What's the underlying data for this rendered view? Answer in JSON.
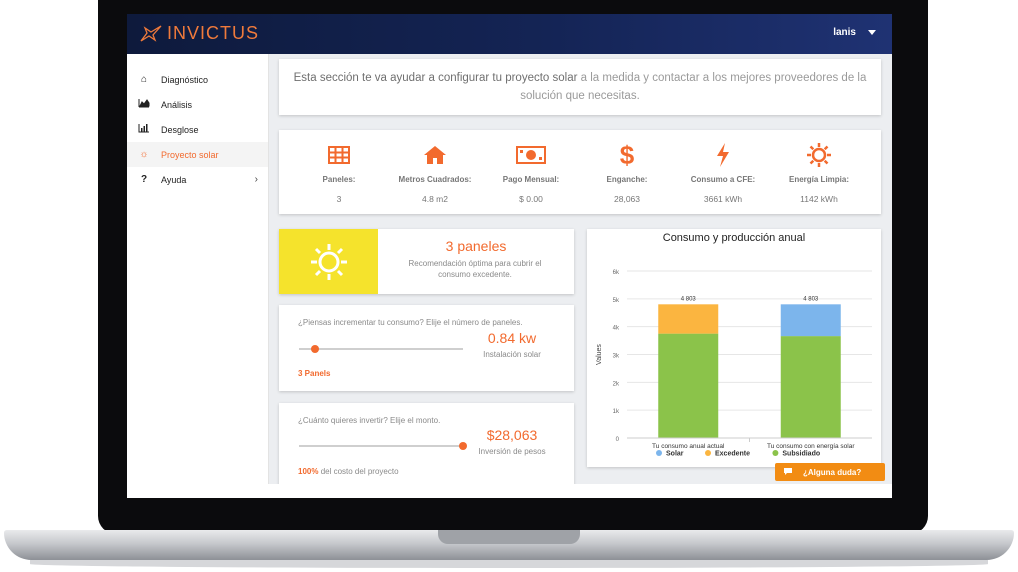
{
  "app": {
    "logo_text": "INVICTUS",
    "user_name": "lanis"
  },
  "sidebar": {
    "items": [
      {
        "label": "Diagnóstico",
        "icon": "home-icon"
      },
      {
        "label": "Análisis",
        "icon": "area-chart-icon"
      },
      {
        "label": "Desglose",
        "icon": "bar-chart-icon"
      },
      {
        "label": "Proyecto solar",
        "icon": "sun-icon",
        "active": true
      },
      {
        "label": "Ayuda",
        "icon": "question-icon",
        "expandable": true
      }
    ]
  },
  "intro": {
    "part1": "Esta sección te va ayudar a configurar tu proyecto solar",
    "part2": " a la medida y contactar a los mejores proveedores de la",
    "part3": "solución que necesitas."
  },
  "stats": [
    {
      "label": "Paneles:",
      "value": "3",
      "icon": "grid-icon"
    },
    {
      "label": "Metros Cuadrados:",
      "value": "4.8 m2",
      "icon": "home-icon"
    },
    {
      "label": "Pago Mensual:",
      "value": "$ 0.00",
      "icon": "money-icon"
    },
    {
      "label": "Enganche:",
      "value": "28,063",
      "icon": "dollar-icon"
    },
    {
      "label": "Consumo a CFE:",
      "value": "3661 kWh",
      "icon": "bolt-icon"
    },
    {
      "label": "Energía Limpia:",
      "value": "1142 kWh",
      "icon": "sun-icon"
    }
  ],
  "recommendation": {
    "title": "3 paneles",
    "subtitle": "Recomendación óptima para cubrir el consumo excedente."
  },
  "consumption": {
    "question": "¿Piensas incrementar tu consumo? Elije el número de paneles.",
    "value": "0.84 kw",
    "value_label": "Instalación solar",
    "footer": "3 Panels",
    "slider_fraction": 0.1
  },
  "investment": {
    "question": "¿Cuánto quieres invertir? Elije el monto.",
    "value": "$28,063",
    "value_label": "Inversión de pesos",
    "footer_bold": "100%",
    "footer_rest": " del costo del proyecto",
    "slider_fraction": 1.0
  },
  "chart_data": {
    "type": "bar",
    "title": "Consumo y producción anual",
    "ylabel": "Values",
    "xlabel": "",
    "ylim": [
      0,
      6000
    ],
    "yticks": [
      "0",
      "1k",
      "2k",
      "3k",
      "4k",
      "5k",
      "6k"
    ],
    "categories": [
      "Tu consumo anual actual",
      "Tu consumo con energía solar"
    ],
    "totals_labels": [
      "4 803",
      "4 803"
    ],
    "series": [
      {
        "name": "Subsidiado",
        "color": "#8bc34a",
        "values": [
          3750,
          3661
        ]
      },
      {
        "name": "Excedente",
        "color": "#fbb540",
        "values": [
          1053,
          0
        ]
      },
      {
        "name": "Solar",
        "color": "#7cb5ec",
        "values": [
          0,
          1142
        ]
      }
    ],
    "legend": [
      "Solar",
      "Excedente",
      "Subsidiado"
    ],
    "legend_position": "bottom",
    "stacked": true
  },
  "help_button": {
    "label": "¿Alguna duda?"
  },
  "colors": {
    "accent": "#f26a2e",
    "topbar": "#142455",
    "sun_box": "#f5e32c"
  }
}
